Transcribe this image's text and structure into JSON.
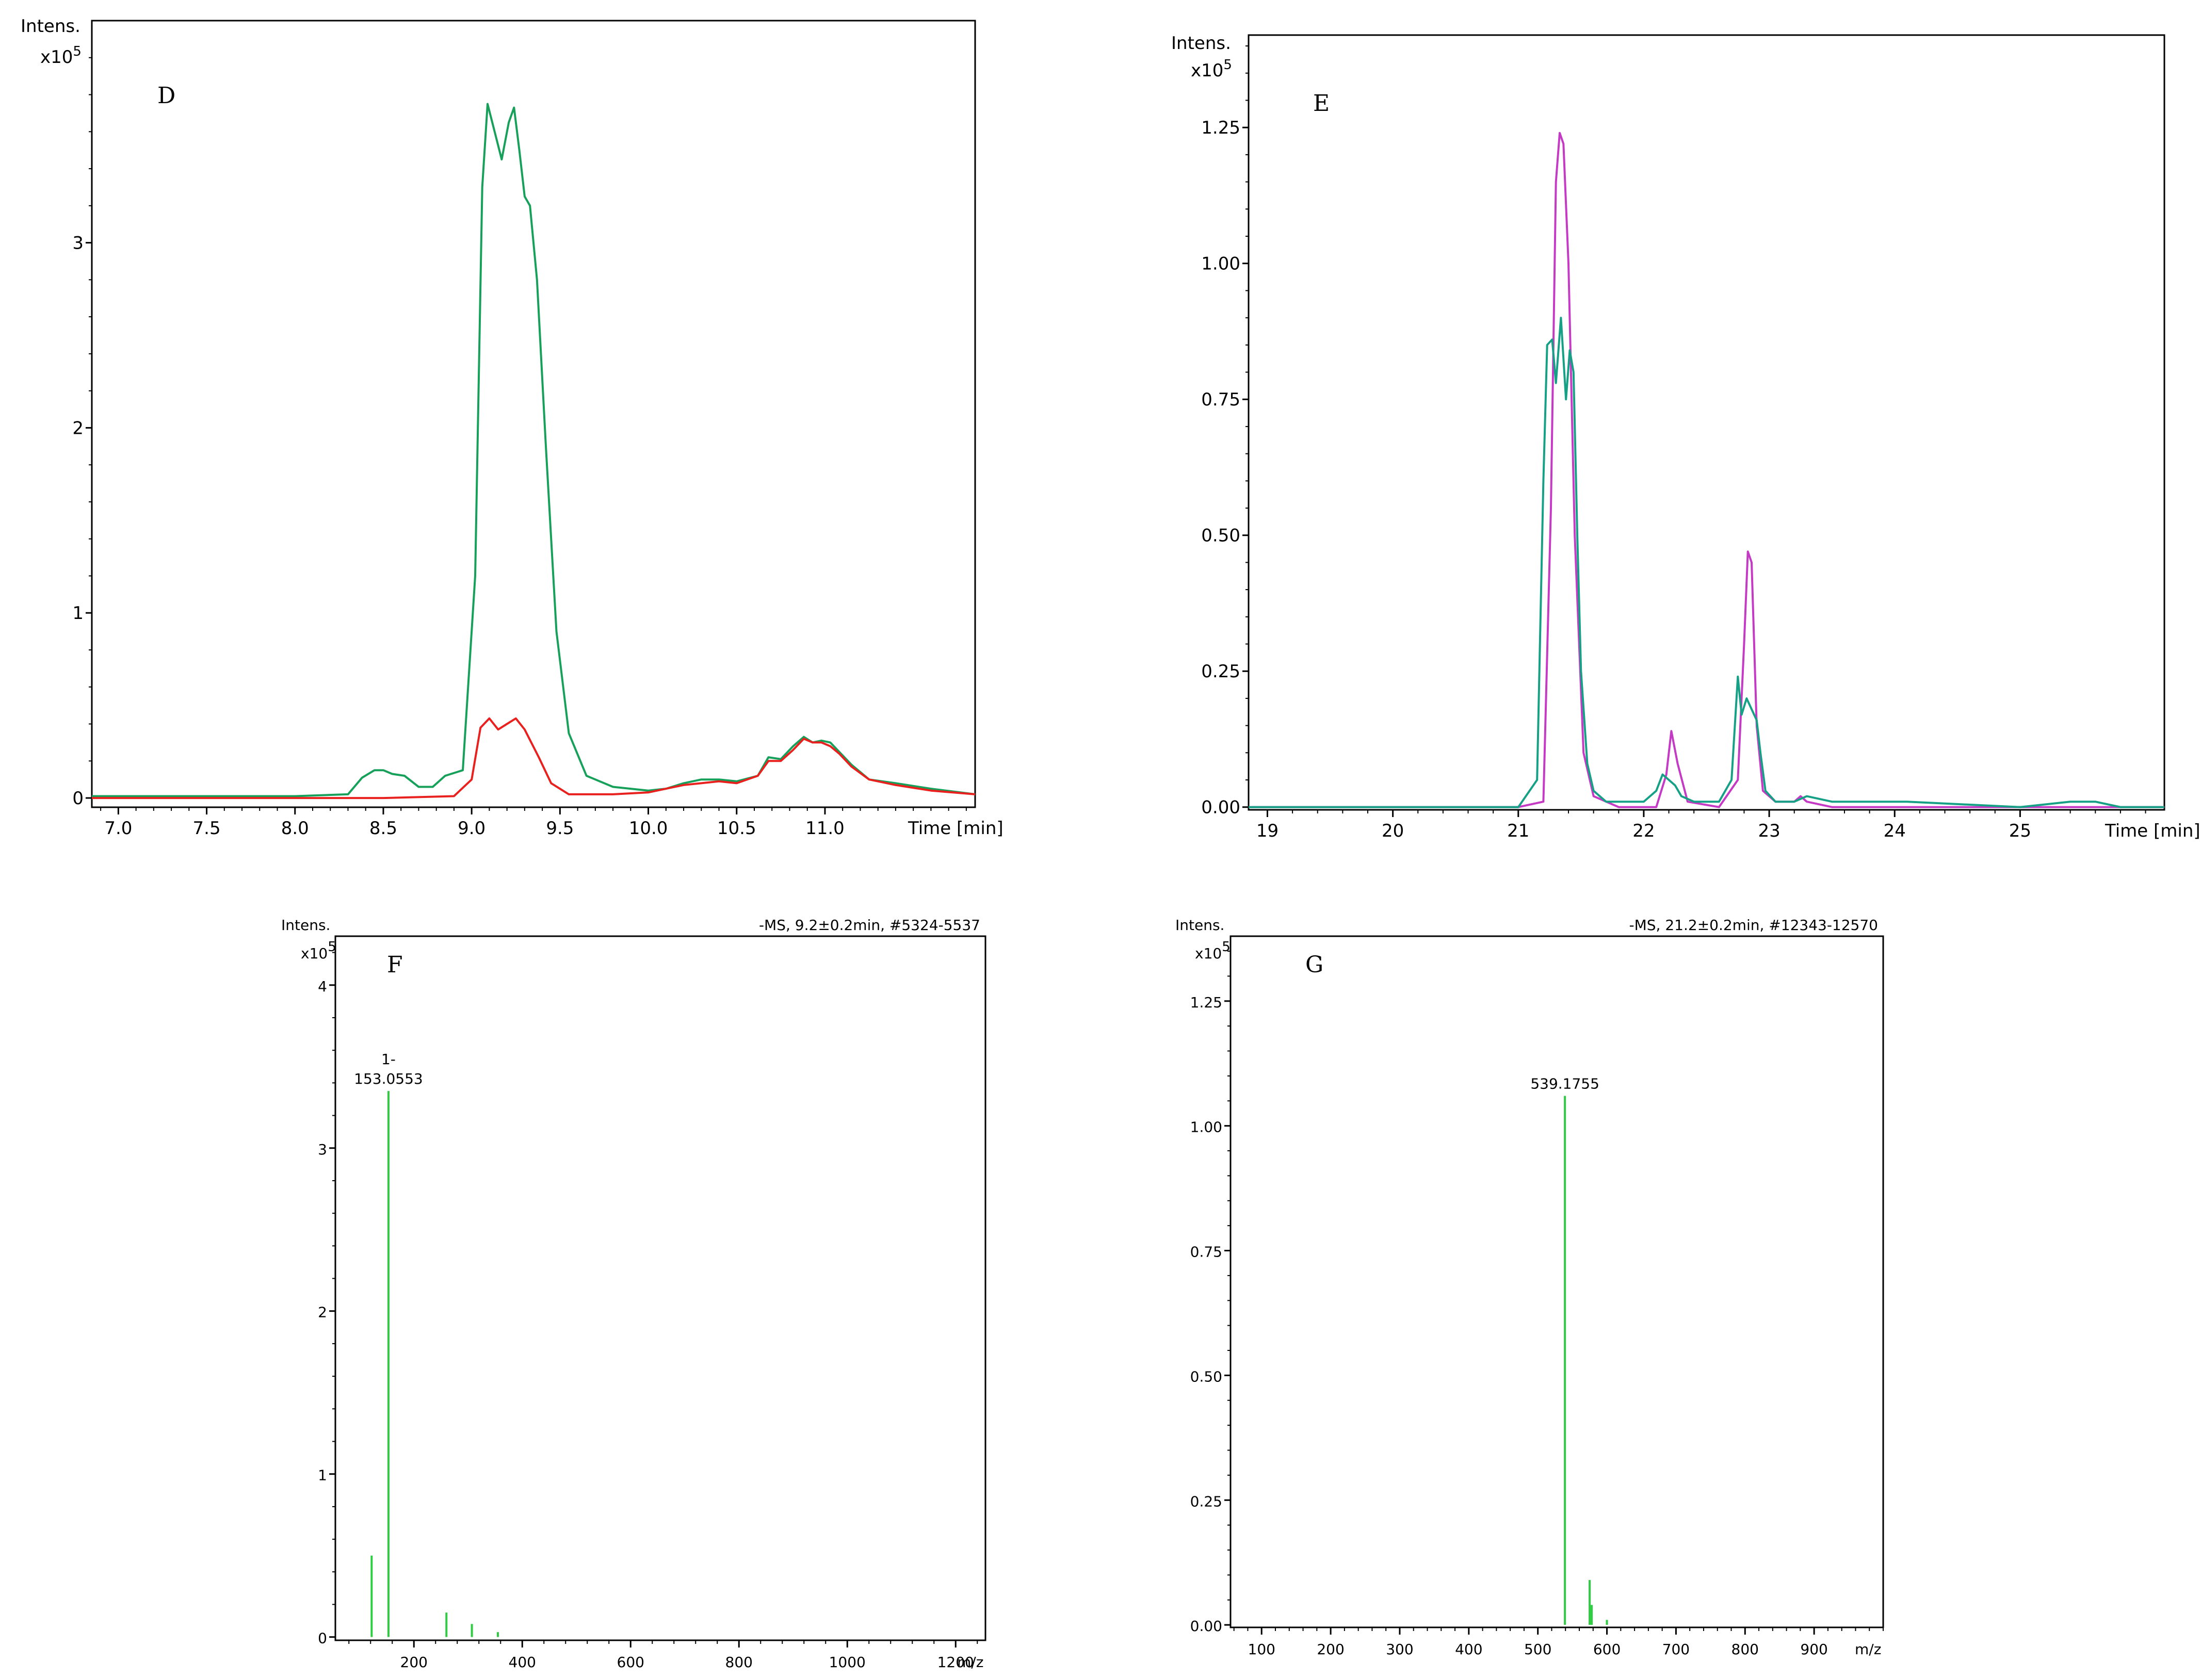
{
  "chart_data": [
    {
      "panel": "D",
      "type": "line",
      "ylabel": "Intens.",
      "yscale": "x10",
      "yscale_exp": "5",
      "xlabel": "Time [min]",
      "xlim": [
        6.85,
        11.85
      ],
      "ylim": [
        -0.05,
        4.2
      ],
      "xticks": [
        "7.0",
        "7.5",
        "8.0",
        "8.5",
        "9.0",
        "9.5",
        "10.0",
        "10.5",
        "11.0"
      ],
      "yticks": [
        "0",
        "1",
        "2",
        "3"
      ],
      "colors": [
        "#16a05a",
        "#e8211f"
      ],
      "series": [
        {
          "x": [
            6.85,
            7.5,
            8.0,
            8.3,
            8.38,
            8.45,
            8.5,
            8.55,
            8.62,
            8.7,
            8.78,
            8.85,
            8.95,
            9.02,
            9.06,
            9.09,
            9.13,
            9.17,
            9.21,
            9.24,
            9.27,
            9.3,
            9.33,
            9.37,
            9.42,
            9.48,
            9.55,
            9.65,
            9.8,
            10.0,
            10.1,
            10.2,
            10.3,
            10.4,
            10.5,
            10.62,
            10.68,
            10.75,
            10.82,
            10.88,
            10.93,
            10.98,
            11.03,
            11.08,
            11.15,
            11.25,
            11.4,
            11.6,
            11.85
          ],
          "values": [
            0.01,
            0.01,
            0.01,
            0.02,
            0.11,
            0.15,
            0.15,
            0.13,
            0.12,
            0.06,
            0.06,
            0.12,
            0.15,
            1.2,
            3.3,
            3.75,
            3.6,
            3.45,
            3.65,
            3.73,
            3.5,
            3.25,
            3.2,
            2.8,
            1.9,
            0.9,
            0.35,
            0.12,
            0.06,
            0.04,
            0.05,
            0.08,
            0.1,
            0.1,
            0.09,
            0.12,
            0.22,
            0.21,
            0.28,
            0.33,
            0.3,
            0.31,
            0.3,
            0.25,
            0.18,
            0.1,
            0.08,
            0.05,
            0.02
          ]
        },
        {
          "x": [
            6.85,
            8.5,
            8.9,
            9.0,
            9.05,
            9.1,
            9.15,
            9.2,
            9.25,
            9.3,
            9.38,
            9.45,
            9.55,
            9.8,
            10.0,
            10.1,
            10.2,
            10.3,
            10.4,
            10.5,
            10.62,
            10.68,
            10.75,
            10.82,
            10.88,
            10.93,
            10.98,
            11.03,
            11.08,
            11.15,
            11.25,
            11.4,
            11.6,
            11.85
          ],
          "values": [
            0.0,
            0.0,
            0.01,
            0.1,
            0.38,
            0.43,
            0.37,
            0.4,
            0.43,
            0.37,
            0.22,
            0.08,
            0.02,
            0.02,
            0.03,
            0.05,
            0.07,
            0.08,
            0.09,
            0.08,
            0.12,
            0.2,
            0.2,
            0.26,
            0.32,
            0.3,
            0.3,
            0.28,
            0.24,
            0.17,
            0.1,
            0.07,
            0.04,
            0.02
          ]
        }
      ]
    },
    {
      "panel": "E",
      "type": "line",
      "ylabel": "Intens.",
      "yscale": "x10",
      "yscale_exp": "5",
      "xlabel": "Time [min]",
      "xlim": [
        18.85,
        26.15
      ],
      "ylim": [
        -0.005,
        1.42
      ],
      "xticks": [
        "19",
        "20",
        "21",
        "22",
        "23",
        "24",
        "25"
      ],
      "yticks": [
        "0.00",
        "0.25",
        "0.50",
        "0.75",
        "1.00",
        "1.25"
      ],
      "colors": [
        "#c43ac4",
        "#16a085"
      ],
      "series": [
        {
          "x": [
            18.85,
            21.0,
            21.2,
            21.26,
            21.3,
            21.33,
            21.36,
            21.4,
            21.45,
            21.52,
            21.6,
            21.8,
            22.1,
            22.18,
            22.22,
            22.27,
            22.35,
            22.6,
            22.75,
            22.8,
            22.83,
            22.86,
            22.9,
            22.95,
            23.05,
            23.2,
            23.25,
            23.3,
            23.5,
            24.0,
            25.0,
            26.15
          ],
          "values": [
            0.0,
            0.0,
            0.01,
            0.55,
            1.15,
            1.24,
            1.22,
            1.0,
            0.5,
            0.1,
            0.02,
            0.0,
            0.0,
            0.06,
            0.14,
            0.08,
            0.01,
            0.0,
            0.05,
            0.3,
            0.47,
            0.45,
            0.15,
            0.03,
            0.01,
            0.01,
            0.02,
            0.01,
            0.0,
            0.0,
            0.0,
            0.0
          ]
        },
        {
          "x": [
            18.85,
            21.0,
            21.15,
            21.2,
            21.23,
            21.27,
            21.3,
            21.34,
            21.38,
            21.41,
            21.44,
            21.47,
            21.5,
            21.55,
            21.6,
            21.7,
            22.0,
            22.1,
            22.15,
            22.2,
            22.25,
            22.3,
            22.4,
            22.6,
            22.7,
            22.75,
            22.78,
            22.82,
            22.86,
            22.9,
            22.93,
            22.97,
            23.05,
            23.2,
            23.3,
            23.5,
            24.0,
            24.1,
            25.0,
            25.4,
            25.6,
            25.8,
            26.15
          ],
          "values": [
            0.0,
            0.0,
            0.05,
            0.6,
            0.85,
            0.86,
            0.78,
            0.9,
            0.75,
            0.84,
            0.8,
            0.5,
            0.25,
            0.08,
            0.03,
            0.01,
            0.01,
            0.03,
            0.06,
            0.05,
            0.04,
            0.02,
            0.01,
            0.01,
            0.05,
            0.24,
            0.17,
            0.2,
            0.18,
            0.16,
            0.1,
            0.03,
            0.01,
            0.01,
            0.02,
            0.01,
            0.01,
            0.01,
            0.0,
            0.01,
            0.01,
            0.0,
            0.0
          ]
        }
      ]
    },
    {
      "panel": "F",
      "type": "bar",
      "ylabel": "Intens.",
      "yscale": "x10",
      "yscale_exp": "5",
      "xlabel": "m/z",
      "info": "-MS, 9.2±0.2min, #5324-5537",
      "xlim": [
        55,
        1255
      ],
      "ylim": [
        -0.02,
        4.3
      ],
      "xticks": [
        "200",
        "400",
        "600",
        "800",
        "1000",
        "1200"
      ],
      "yticks": [
        "0",
        "1",
        "2",
        "3",
        "4"
      ],
      "color": "#2ecc40",
      "peak_annotation": [
        "1-",
        "153.0553"
      ],
      "mz": [
        122,
        153.0553,
        260,
        307,
        355
      ],
      "values": [
        0.5,
        3.35,
        0.15,
        0.08,
        0.03
      ]
    },
    {
      "panel": "G",
      "type": "bar",
      "ylabel": "Intens.",
      "yscale": "x10",
      "yscale_exp": "5",
      "xlabel": "m/z",
      "info": "-MS, 21.2±0.2min, #12343-12570",
      "xlim": [
        55,
        1000
      ],
      "ylim": [
        -0.005,
        1.38
      ],
      "xticks": [
        "100",
        "200",
        "300",
        "400",
        "500",
        "600",
        "700",
        "800",
        "900"
      ],
      "yticks": [
        "0.00",
        "0.25",
        "0.50",
        "0.75",
        "1.00",
        "1.25"
      ],
      "color": "#2ecc40",
      "peak_annotation": [
        "539.1755"
      ],
      "mz": [
        539.1755,
        575,
        578,
        600
      ],
      "values": [
        1.06,
        0.09,
        0.04,
        0.01
      ]
    }
  ]
}
